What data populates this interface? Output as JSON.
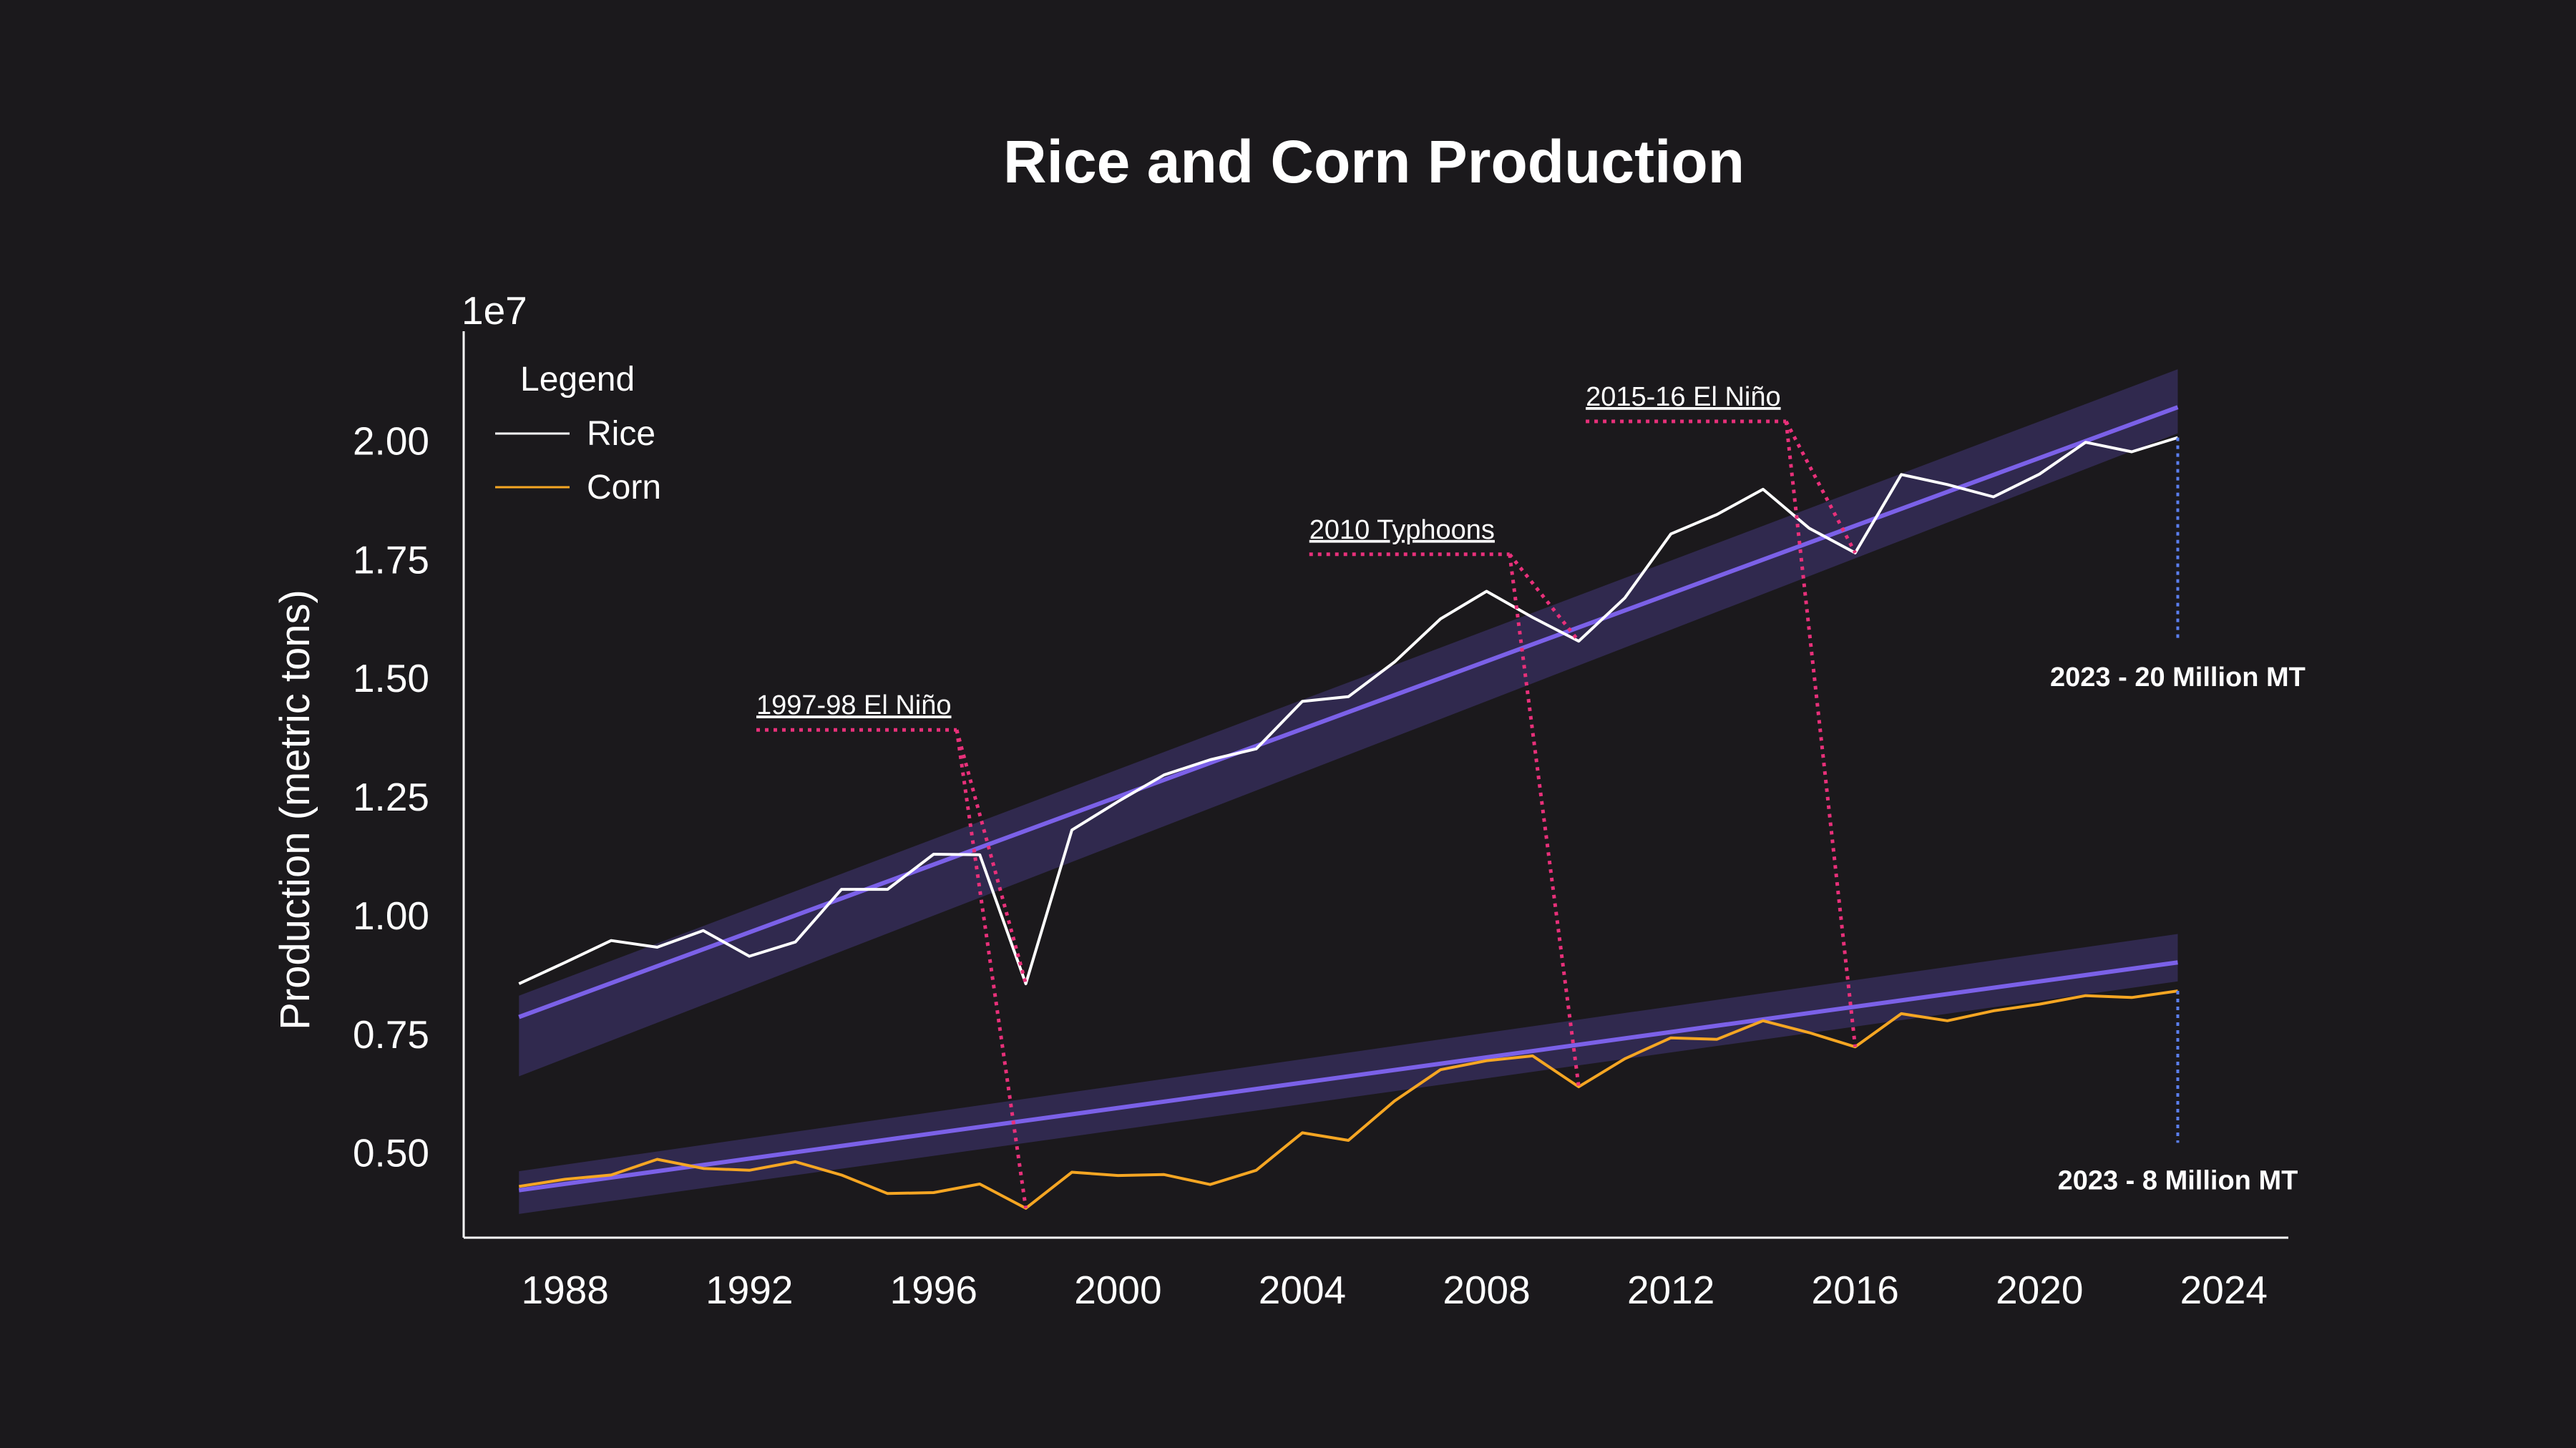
{
  "chart_data": {
    "type": "line",
    "title": "Rice and Corn Production",
    "xlabel": "",
    "ylabel": "Production (metric tons)",
    "y_offset_label": "1e7",
    "xlim": [
      1985.8,
      2025.4
    ],
    "ylim": [
      3200000.0,
      22300000.0
    ],
    "x_ticks": [
      "1988",
      "1992",
      "1996",
      "2000",
      "2004",
      "2008",
      "2012",
      "2016",
      "2020",
      "2024"
    ],
    "y_ticks": [
      "0.50",
      "0.75",
      "1.00",
      "1.25",
      "1.50",
      "1.75",
      "2.00"
    ],
    "legend": {
      "title": "Legend",
      "position": "top-left"
    },
    "x": [
      1987,
      1988,
      1989,
      1990,
      1991,
      1992,
      1993,
      1994,
      1995,
      1996,
      1997,
      1998,
      1999,
      2000,
      2001,
      2002,
      2003,
      2004,
      2005,
      2006,
      2007,
      2008,
      2009,
      2010,
      2011,
      2012,
      2013,
      2014,
      2015,
      2016,
      2017,
      2018,
      2019,
      2020,
      2021,
      2022,
      2023
    ],
    "series": [
      {
        "name": "Rice",
        "color": "#ffffff",
        "values": [
          8550000,
          9000000,
          9460000,
          9320000,
          9670000,
          9130000,
          9430000,
          10540000,
          10540000,
          11280000,
          11270000,
          8550000,
          11790000,
          12390000,
          12950000,
          13270000,
          13500000,
          14500000,
          14600000,
          15330000,
          16240000,
          16820000,
          16270000,
          15770000,
          16680000,
          18030000,
          18440000,
          18970000,
          18150000,
          17630000,
          19280000,
          19070000,
          18810000,
          19290000,
          19960000,
          19760000,
          20060000
        ]
      },
      {
        "name": "Corn",
        "color": "#f5a623",
        "values": [
          4280000,
          4430000,
          4520000,
          4850000,
          4660000,
          4620000,
          4800000,
          4520000,
          4130000,
          4150000,
          4330000,
          3820000,
          4580000,
          4510000,
          4530000,
          4320000,
          4620000,
          5410000,
          5250000,
          6080000,
          6740000,
          6930000,
          7030000,
          6380000,
          6970000,
          7410000,
          7380000,
          7770000,
          7520000,
          7220000,
          7920000,
          7770000,
          7980000,
          8120000,
          8300000,
          8260000,
          8400000
        ]
      }
    ],
    "trend_color": "#7b61e8",
    "trends": [
      {
        "series": "Rice",
        "from": [
          1987,
          7850000
        ],
        "to": [
          2023,
          20700000
        ],
        "band_start": [
          6600000,
          8300000
        ],
        "band_end": [
          20150000,
          21500000
        ]
      },
      {
        "series": "Corn",
        "from": [
          1987,
          4200000
        ],
        "to": [
          2023,
          9000000
        ],
        "band_start": [
          3700000,
          4600000
        ],
        "band_end": [
          8600000,
          9600000
        ]
      }
    ],
    "annotation_color": "#e8307a",
    "annotations": [
      {
        "text": "1997-98 El Niño",
        "x": 1998,
        "label_value": 13900000,
        "targets": [
          [
            1998,
            8550000
          ],
          [
            1998,
            3820000
          ]
        ]
      },
      {
        "text": "2010 Typhoons",
        "x": 2010,
        "label_value": 17600000,
        "targets": [
          [
            2010,
            15770000
          ],
          [
            2010,
            6380000
          ]
        ]
      },
      {
        "text": "2015-16 El Niño",
        "x": 2016,
        "label_value": 20400000,
        "targets": [
          [
            2016,
            17630000
          ],
          [
            2016,
            7220000
          ]
        ]
      }
    ],
    "end_labels": [
      {
        "text": "2023 - 20 Million MT",
        "x": 2023,
        "from": 20060000,
        "to": 15800000
      },
      {
        "text": "2023 - 8 Million MT",
        "x": 2023,
        "from": 8400000,
        "to": 5200000
      }
    ]
  }
}
